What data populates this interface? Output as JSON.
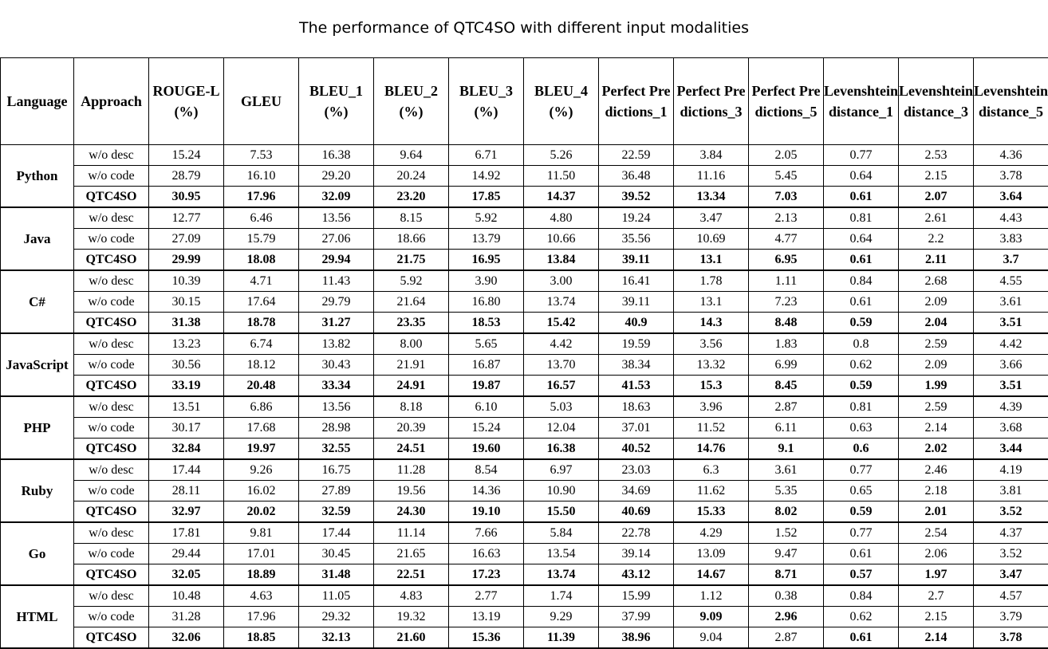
{
  "title": "The performance of QTC4SO with different input modalities",
  "table": {
    "headers": [
      "Language",
      "Approach",
      "ROUGE-L(%)",
      "GLEU",
      "BLEU_1(%)",
      "BLEU_2(%)",
      "BLEU_3(%)",
      "BLEU_4(%)",
      "Perfect Predictions_1",
      "Perfect Predictions_3",
      "Perfect Predictions_5",
      "Levenshtein distance_1",
      "Levenshtein distance_3",
      "Levenshtein distance_5"
    ],
    "groups": [
      {
        "language": "Python",
        "rows": [
          {
            "approach": "w/o desc",
            "values": [
              "15.24",
              "7.53",
              "16.38",
              "9.64",
              "6.71",
              "5.26",
              "22.59",
              "3.84",
              "2.05",
              "0.77",
              "2.53",
              "4.36"
            ]
          },
          {
            "approach": "w/o code",
            "values": [
              "28.79",
              "16.10",
              "29.20",
              "20.24",
              "14.92",
              "11.50",
              "36.48",
              "11.16",
              "5.45",
              "0.64",
              "2.15",
              "3.78"
            ]
          },
          {
            "approach": "QTC4SO",
            "values": [
              "30.95",
              "17.96",
              "32.09",
              "23.20",
              "17.85",
              "14.37",
              "39.52",
              "13.34",
              "7.03",
              "0.61",
              "2.07",
              "3.64"
            ]
          }
        ]
      },
      {
        "language": "Java",
        "rows": [
          {
            "approach": "w/o desc",
            "values": [
              "12.77",
              "6.46",
              "13.56",
              "8.15",
              "5.92",
              "4.80",
              "19.24",
              "3.47",
              "2.13",
              "0.81",
              "2.61",
              "4.43"
            ]
          },
          {
            "approach": "w/o code",
            "values": [
              "27.09",
              "15.79",
              "27.06",
              "18.66",
              "13.79",
              "10.66",
              "35.56",
              "10.69",
              "4.77",
              "0.64",
              "2.2",
              "3.83"
            ]
          },
          {
            "approach": "QTC4SO",
            "values": [
              "29.99",
              "18.08",
              "29.94",
              "21.75",
              "16.95",
              "13.84",
              "39.11",
              "13.1",
              "6.95",
              "0.61",
              "2.11",
              "3.7"
            ]
          }
        ]
      },
      {
        "language": "C#",
        "rows": [
          {
            "approach": "w/o desc",
            "values": [
              "10.39",
              "4.71",
              "11.43",
              "5.92",
              "3.90",
              "3.00",
              "16.41",
              "1.78",
              "1.11",
              "0.84",
              "2.68",
              "4.55"
            ]
          },
          {
            "approach": "w/o code",
            "values": [
              "30.15",
              "17.64",
              "29.79",
              "21.64",
              "16.80",
              "13.74",
              "39.11",
              "13.1",
              "7.23",
              "0.61",
              "2.09",
              "3.61"
            ]
          },
          {
            "approach": "QTC4SO",
            "values": [
              "31.38",
              "18.78",
              "31.27",
              "23.35",
              "18.53",
              "15.42",
              "40.9",
              "14.3",
              "8.48",
              "0.59",
              "2.04",
              "3.51"
            ]
          }
        ]
      },
      {
        "language": "JavaScript",
        "rows": [
          {
            "approach": "w/o desc",
            "values": [
              "13.23",
              "6.74",
              "13.82",
              "8.00",
              "5.65",
              "4.42",
              "19.59",
              "3.56",
              "1.83",
              "0.8",
              "2.59",
              "4.42"
            ]
          },
          {
            "approach": "w/o code",
            "values": [
              "30.56",
              "18.12",
              "30.43",
              "21.91",
              "16.87",
              "13.70",
              "38.34",
              "13.32",
              "6.99",
              "0.62",
              "2.09",
              "3.66"
            ]
          },
          {
            "approach": "QTC4SO",
            "values": [
              "33.19",
              "20.48",
              "33.34",
              "24.91",
              "19.87",
              "16.57",
              "41.53",
              "15.3",
              "8.45",
              "0.59",
              "1.99",
              "3.51"
            ]
          }
        ]
      },
      {
        "language": "PHP",
        "rows": [
          {
            "approach": "w/o desc",
            "values": [
              "13.51",
              "6.86",
              "13.56",
              "8.18",
              "6.10",
              "5.03",
              "18.63",
              "3.96",
              "2.87",
              "0.81",
              "2.59",
              "4.39"
            ]
          },
          {
            "approach": "w/o code",
            "values": [
              "30.17",
              "17.68",
              "28.98",
              "20.39",
              "15.24",
              "12.04",
              "37.01",
              "11.52",
              "6.11",
              "0.63",
              "2.14",
              "3.68"
            ]
          },
          {
            "approach": "QTC4SO",
            "values": [
              "32.84",
              "19.97",
              "32.55",
              "24.51",
              "19.60",
              "16.38",
              "40.52",
              "14.76",
              "9.1",
              "0.6",
              "2.02",
              "3.44"
            ]
          }
        ]
      },
      {
        "language": "Ruby",
        "rows": [
          {
            "approach": "w/o desc",
            "values": [
              "17.44",
              "9.26",
              "16.75",
              "11.28",
              "8.54",
              "6.97",
              "23.03",
              "6.3",
              "3.61",
              "0.77",
              "2.46",
              "4.19"
            ]
          },
          {
            "approach": "w/o code",
            "values": [
              "28.11",
              "16.02",
              "27.89",
              "19.56",
              "14.36",
              "10.90",
              "34.69",
              "11.62",
              "5.35",
              "0.65",
              "2.18",
              "3.81"
            ]
          },
          {
            "approach": "QTC4SO",
            "values": [
              "32.97",
              "20.02",
              "32.59",
              "24.30",
              "19.10",
              "15.50",
              "40.69",
              "15.33",
              "8.02",
              "0.59",
              "2.01",
              "3.52"
            ]
          }
        ]
      },
      {
        "language": "Go",
        "rows": [
          {
            "approach": "w/o desc",
            "values": [
              "17.81",
              "9.81",
              "17.44",
              "11.14",
              "7.66",
              "5.84",
              "22.78",
              "4.29",
              "1.52",
              "0.77",
              "2.54",
              "4.37"
            ]
          },
          {
            "approach": "w/o code",
            "values": [
              "29.44",
              "17.01",
              "30.45",
              "21.65",
              "16.63",
              "13.54",
              "39.14",
              "13.09",
              "9.47",
              "0.61",
              "2.06",
              "3.52"
            ]
          },
          {
            "approach": "QTC4SO",
            "values": [
              "32.05",
              "18.89",
              "31.48",
              "22.51",
              "17.23",
              "13.74",
              "43.12",
              "14.67",
              "8.71",
              "0.57",
              "1.97",
              "3.47"
            ]
          }
        ]
      },
      {
        "language": "HTML",
        "rows": [
          {
            "approach": "w/o desc",
            "values": [
              "10.48",
              "4.63",
              "11.05",
              "4.83",
              "2.77",
              "1.74",
              "15.99",
              "1.12",
              "0.38",
              "0.84",
              "2.7",
              "4.57"
            ]
          },
          {
            "approach": "w/o code",
            "values": [
              "31.28",
              "17.96",
              "29.32",
              "19.32",
              "13.19",
              "9.29",
              "37.99",
              "9.09",
              "2.96",
              "0.62",
              "2.15",
              "3.79"
            ],
            "bold_indices": [
              7,
              8
            ]
          },
          {
            "approach": "QTC4SO",
            "values": [
              "32.06",
              "18.85",
              "32.13",
              "21.60",
              "15.36",
              "11.39",
              "38.96",
              "9.04",
              "2.87",
              "0.61",
              "2.14",
              "3.78"
            ],
            "plain_indices": [
              7,
              8
            ]
          }
        ]
      }
    ]
  }
}
